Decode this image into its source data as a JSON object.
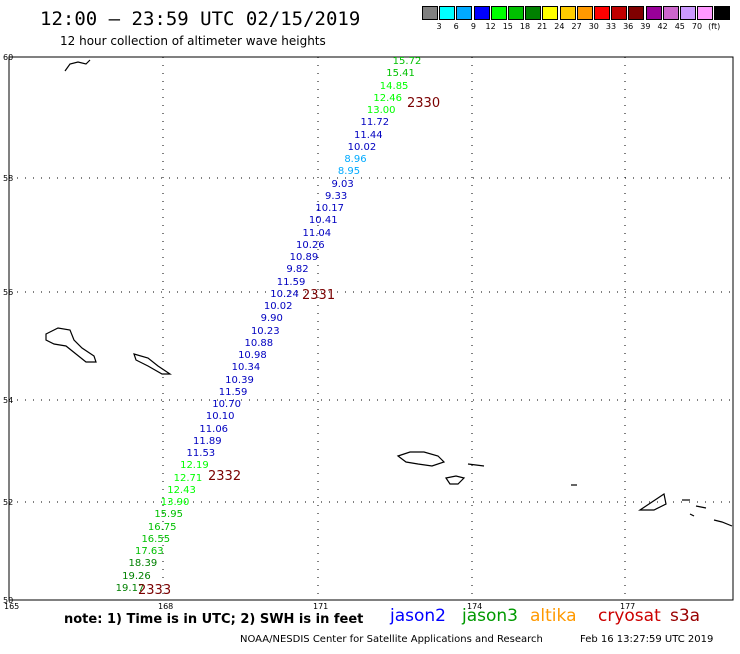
{
  "header": {
    "title": "12:00 – 23:59 UTC 02/15/2019",
    "subtitle": "12 hour collection of altimeter wave heights"
  },
  "legend": {
    "colors": [
      "#808080",
      "#00ffff",
      "#00aaff",
      "#0000ff",
      "#00ff00",
      "#00c000",
      "#008000",
      "#ffff00",
      "#ffcc00",
      "#ff9900",
      "#ff0000",
      "#c00000",
      "#800000",
      "#990099",
      "#cc66cc",
      "#cc99ff",
      "#ff99ff",
      "#000000"
    ],
    "labels": [
      "3",
      "6",
      "9",
      "12",
      "15",
      "18",
      "21",
      "24",
      "27",
      "30",
      "33",
      "36",
      "39",
      "42",
      "45",
      "70",
      "(ft)"
    ]
  },
  "axes": {
    "lat_labels": [
      "60",
      "58",
      "56",
      "54",
      "52",
      "50"
    ],
    "lon_labels": [
      "165",
      "168",
      "171",
      "174",
      "177"
    ]
  },
  "measurements": [
    {
      "v": "15.72",
      "c": "#00c000"
    },
    {
      "v": "15.41",
      "c": "#00c000"
    },
    {
      "v": "14.85",
      "c": "#00ff00"
    },
    {
      "v": "12.46",
      "c": "#00ff00"
    },
    {
      "v": "13.00",
      "c": "#00ff00"
    },
    {
      "v": "11.72",
      "c": "#0000c0"
    },
    {
      "v": "11.44",
      "c": "#0000c0"
    },
    {
      "v": "10.02",
      "c": "#0000c0"
    },
    {
      "v": "8.96",
      "c": "#00aaff"
    },
    {
      "v": "8.95",
      "c": "#00aaff"
    },
    {
      "v": "9.03",
      "c": "#0000c0"
    },
    {
      "v": "9.33",
      "c": "#0000c0"
    },
    {
      "v": "10.17",
      "c": "#0000c0"
    },
    {
      "v": "10.41",
      "c": "#0000c0"
    },
    {
      "v": "11.04",
      "c": "#0000c0"
    },
    {
      "v": "10.26",
      "c": "#0000c0"
    },
    {
      "v": "10.89",
      "c": "#0000c0"
    },
    {
      "v": "9.82",
      "c": "#0000c0"
    },
    {
      "v": "11.59",
      "c": "#0000c0"
    },
    {
      "v": "10.24",
      "c": "#0000c0"
    },
    {
      "v": "10.02",
      "c": "#0000c0"
    },
    {
      "v": "9.90",
      "c": "#0000c0"
    },
    {
      "v": "10.23",
      "c": "#0000c0"
    },
    {
      "v": "10.88",
      "c": "#0000c0"
    },
    {
      "v": "10.98",
      "c": "#0000c0"
    },
    {
      "v": "10.34",
      "c": "#0000c0"
    },
    {
      "v": "10.39",
      "c": "#0000c0"
    },
    {
      "v": "11.59",
      "c": "#0000c0"
    },
    {
      "v": "10.70",
      "c": "#0000c0"
    },
    {
      "v": "10.10",
      "c": "#0000c0"
    },
    {
      "v": "11.06",
      "c": "#0000c0"
    },
    {
      "v": "11.89",
      "c": "#0000c0"
    },
    {
      "v": "11.53",
      "c": "#0000c0"
    },
    {
      "v": "12.19",
      "c": "#00ff00"
    },
    {
      "v": "12.71",
      "c": "#00ff00"
    },
    {
      "v": "12.43",
      "c": "#00ff00"
    },
    {
      "v": "13.90",
      "c": "#00ff00"
    },
    {
      "v": "15.95",
      "c": "#00c000"
    },
    {
      "v": "16.75",
      "c": "#00c000"
    },
    {
      "v": "16.55",
      "c": "#00c000"
    },
    {
      "v": "17.63",
      "c": "#00c000"
    },
    {
      "v": "18.39",
      "c": "#008000"
    },
    {
      "v": "19.26",
      "c": "#008000"
    },
    {
      "v": "19.17",
      "c": "#008000"
    }
  ],
  "cycles": [
    "2330",
    "2331",
    "2332",
    "2333"
  ],
  "note": "note:  1) Time is in UTC;  2) SWH is in feet",
  "satellites": [
    {
      "name": "jason2",
      "color": "#0000ff"
    },
    {
      "name": "jason3",
      "color": "#009900"
    },
    {
      "name": "altika",
      "color": "#ff9900"
    },
    {
      "name": "cryosat",
      "color": "#cc0000"
    },
    {
      "name": "s3a",
      "color": "#990000"
    }
  ],
  "footer": {
    "credit": "NOAA/NESDIS Center for Satellite Applications and Research",
    "timestamp": "Feb 16 13:27:59 UTC 2019"
  }
}
